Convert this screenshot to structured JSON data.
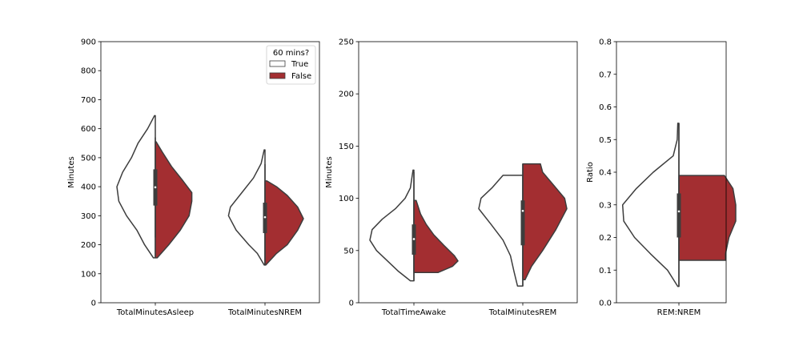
{
  "chart_data": [
    {
      "type": "violin",
      "ylabel": "Minutes",
      "ylim": [
        0,
        900
      ],
      "yticks": [
        0,
        100,
        200,
        300,
        400,
        500,
        600,
        700,
        800,
        900
      ],
      "categories": [
        "TotalMinutesAsleep",
        "TotalMinutesNREM"
      ],
      "legend": {
        "title": "60 mins?",
        "placement": "top-right",
        "entries": [
          {
            "label": "True",
            "color": "#ffffff"
          },
          {
            "label": "False",
            "color": "#a32e31"
          }
        ]
      },
      "violins": [
        {
          "category": "TotalMinutesAsleep",
          "left": {
            "series": "True",
            "ymin": 155,
            "ymax": 645,
            "profile": [
              [
                155,
                0.05
              ],
              [
                200,
                0.28
              ],
              [
                250,
                0.48
              ],
              [
                300,
                0.75
              ],
              [
                350,
                0.95
              ],
              [
                400,
                1.0
              ],
              [
                450,
                0.85
              ],
              [
                500,
                0.62
              ],
              [
                550,
                0.45
              ],
              [
                600,
                0.2
              ],
              [
                645,
                0.02
              ]
            ]
          },
          "right": {
            "series": "False",
            "ymin": 155,
            "ymax": 555,
            "profile": [
              [
                155,
                0.05
              ],
              [
                200,
                0.35
              ],
              [
                250,
                0.65
              ],
              [
                300,
                0.88
              ],
              [
                350,
                0.95
              ],
              [
                380,
                0.95
              ],
              [
                420,
                0.72
              ],
              [
                470,
                0.42
              ],
              [
                520,
                0.18
              ],
              [
                555,
                0.02
              ]
            ]
          },
          "box": {
            "q1": 335,
            "q3": 460,
            "median": 398,
            "whisker_low": 225,
            "whisker_high": 570
          }
        },
        {
          "category": "TotalMinutesNREM",
          "left": {
            "series": "True",
            "ymin": 130,
            "ymax": 527,
            "profile": [
              [
                130,
                0.02
              ],
              [
                170,
                0.2
              ],
              [
                200,
                0.42
              ],
              [
                250,
                0.75
              ],
              [
                300,
                0.95
              ],
              [
                330,
                0.9
              ],
              [
                380,
                0.6
              ],
              [
                430,
                0.3
              ],
              [
                480,
                0.1
              ],
              [
                527,
                0.02
              ]
            ]
          },
          "right": {
            "series": "False",
            "ymin": 130,
            "ymax": 420,
            "profile": [
              [
                130,
                0.02
              ],
              [
                170,
                0.3
              ],
              [
                200,
                0.58
              ],
              [
                250,
                0.85
              ],
              [
                290,
                1.0
              ],
              [
                330,
                0.85
              ],
              [
                370,
                0.58
              ],
              [
                400,
                0.3
              ],
              [
                420,
                0.05
              ]
            ]
          },
          "box": {
            "q1": 240,
            "q3": 345,
            "median": 295,
            "whisker_low": 130,
            "whisker_high": 478
          }
        }
      ]
    },
    {
      "type": "violin",
      "ylabel": "Minutes",
      "ylim": [
        0,
        250
      ],
      "yticks": [
        0,
        50,
        100,
        150,
        200,
        250
      ],
      "categories": [
        "TotalTimeAwake",
        "TotalMinutesREM"
      ],
      "violins": [
        {
          "category": "TotalTimeAwake",
          "left": {
            "series": "True",
            "ymin": 21,
            "ymax": 127,
            "profile": [
              [
                21,
                0.08
              ],
              [
                30,
                0.35
              ],
              [
                40,
                0.6
              ],
              [
                50,
                0.85
              ],
              [
                60,
                1.0
              ],
              [
                70,
                0.95
              ],
              [
                80,
                0.72
              ],
              [
                90,
                0.42
              ],
              [
                100,
                0.2
              ],
              [
                110,
                0.08
              ],
              [
                127,
                0.02
              ]
            ]
          },
          "right": {
            "series": "False",
            "ymin": 29,
            "ymax": 98,
            "profile": [
              [
                29,
                0.55
              ],
              [
                35,
                0.88
              ],
              [
                40,
                1.0
              ],
              [
                45,
                0.92
              ],
              [
                55,
                0.68
              ],
              [
                65,
                0.45
              ],
              [
                75,
                0.28
              ],
              [
                85,
                0.15
              ],
              [
                98,
                0.05
              ]
            ]
          },
          "box": {
            "q1": 46,
            "q3": 75,
            "median": 61,
            "whisker_low": 21,
            "whisker_high": 125
          }
        },
        {
          "category": "TotalMinutesREM",
          "left": {
            "series": "True",
            "ymin": 16,
            "ymax": 122,
            "profile": [
              [
                16,
                0.12
              ],
              [
                30,
                0.2
              ],
              [
                45,
                0.28
              ],
              [
                60,
                0.45
              ],
              [
                75,
                0.72
              ],
              [
                90,
                1.0
              ],
              [
                100,
                0.95
              ],
              [
                110,
                0.7
              ],
              [
                122,
                0.45
              ]
            ]
          },
          "right": {
            "series": "False",
            "ymin": 22,
            "ymax": 133,
            "profile": [
              [
                22,
                0.05
              ],
              [
                35,
                0.2
              ],
              [
                50,
                0.45
              ],
              [
                70,
                0.75
              ],
              [
                90,
                1.0
              ],
              [
                100,
                0.95
              ],
              [
                115,
                0.65
              ],
              [
                125,
                0.45
              ],
              [
                133,
                0.4
              ]
            ]
          },
          "box": {
            "q1": 55,
            "q3": 98,
            "median": 88,
            "whisker_low": 16,
            "whisker_high": 133
          }
        }
      ]
    },
    {
      "type": "violin",
      "ylabel": "Ratio",
      "ylim": [
        0,
        0.8
      ],
      "yticks": [
        0.0,
        0.1,
        0.2,
        0.3,
        0.4,
        0.5,
        0.6,
        0.7,
        0.8
      ],
      "categories": [
        "REM:NREM"
      ],
      "violins": [
        {
          "category": "REM:NREM",
          "left": {
            "series": "True",
            "ymin": 0.05,
            "ymax": 0.55,
            "profile": [
              [
                0.05,
                0.02
              ],
              [
                0.1,
                0.2
              ],
              [
                0.15,
                0.5
              ],
              [
                0.2,
                0.78
              ],
              [
                0.25,
                0.97
              ],
              [
                0.3,
                0.99
              ],
              [
                0.35,
                0.75
              ],
              [
                0.4,
                0.45
              ],
              [
                0.45,
                0.1
              ],
              [
                0.5,
                0.03
              ],
              [
                0.55,
                0.02
              ]
            ]
          },
          "right": {
            "series": "False",
            "ymin": 0.13,
            "ymax": 0.39,
            "profile": [
              [
                0.13,
                0.82
              ],
              [
                0.15,
                0.82
              ],
              [
                0.2,
                0.88
              ],
              [
                0.25,
                1.0
              ],
              [
                0.3,
                1.0
              ],
              [
                0.35,
                0.95
              ],
              [
                0.39,
                0.8
              ]
            ]
          },
          "box": {
            "q1": 0.2,
            "q3": 0.335,
            "median": 0.28,
            "whisker_low": 0.05,
            "whisker_high": 0.55
          }
        }
      ]
    }
  ]
}
